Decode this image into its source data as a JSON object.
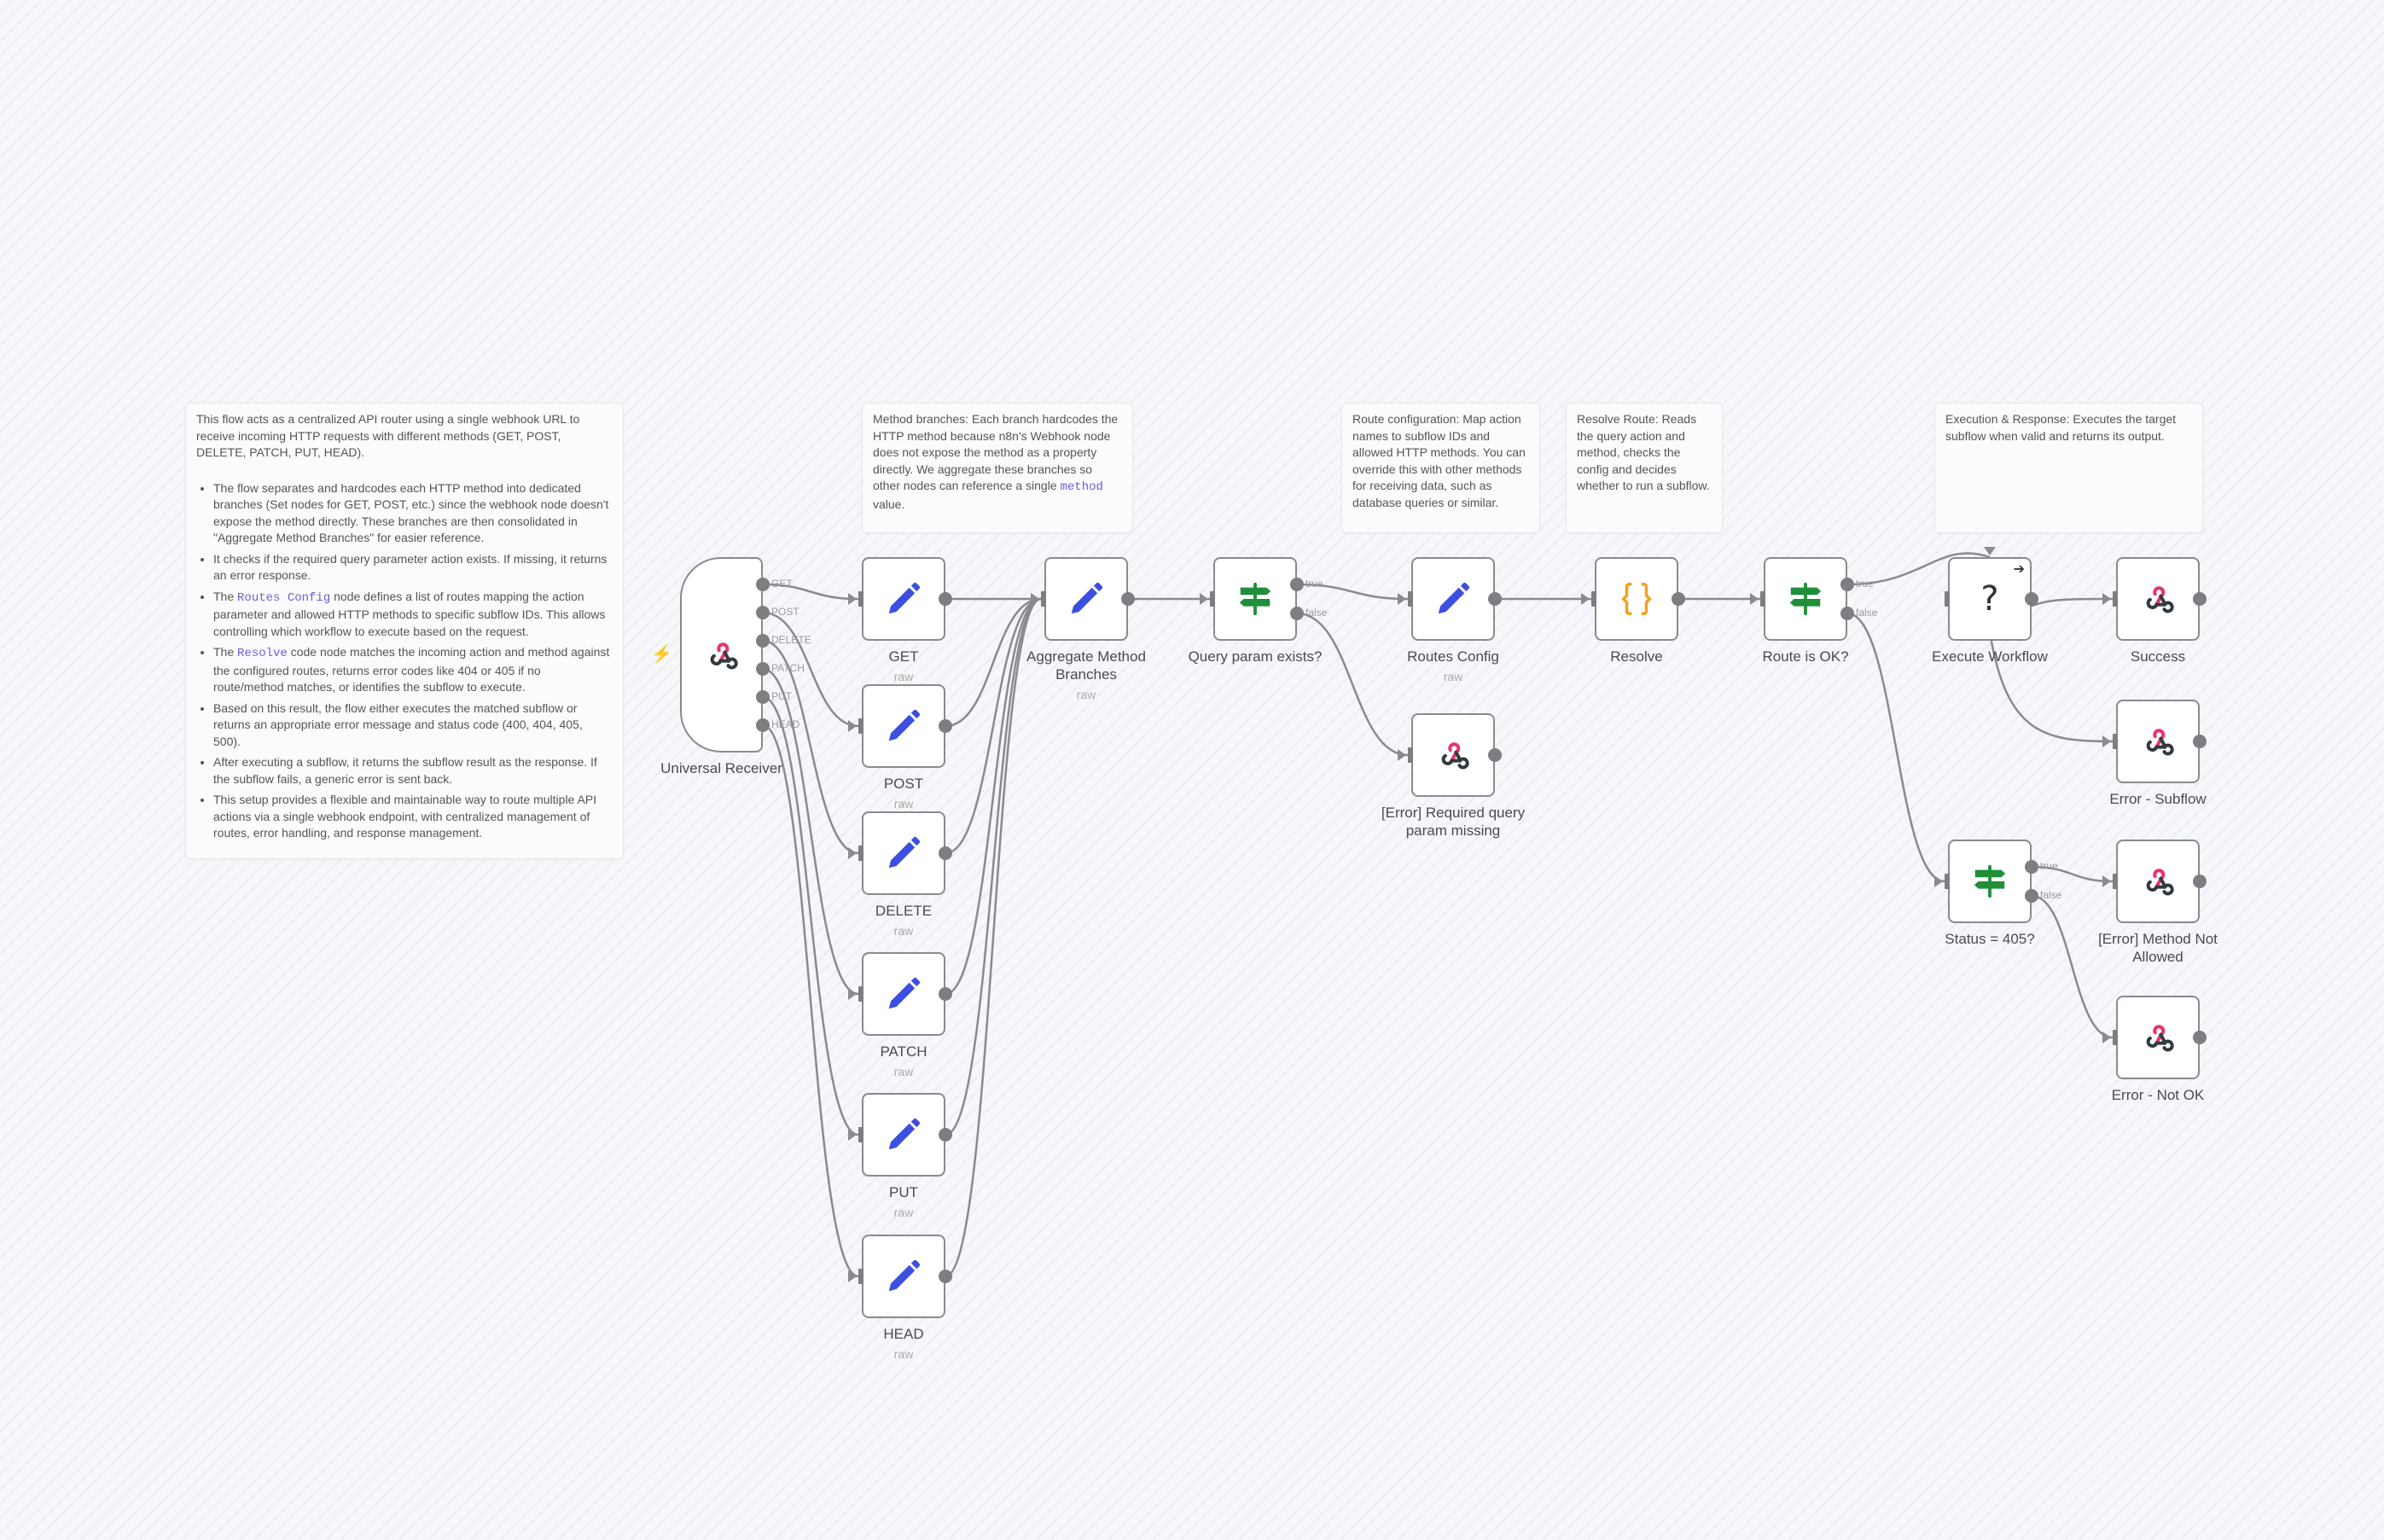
{
  "notes": {
    "overview": {
      "intro": "This flow acts as a centralized API router using a single webhook URL to receive incoming HTTP requests with different methods (GET, POST, DELETE, PATCH, PUT, HEAD).",
      "bullets": [
        {
          "pre": "The flow separates and hardcodes each HTTP method into dedicated branches (Set nodes for GET, POST, etc.) since the webhook node doesn't expose the method directly. These branches are then consolidated in \"Aggregate Method Branches\" for easier reference."
        },
        {
          "pre": "It checks if the required query parameter action exists. If missing, it returns an error response."
        },
        {
          "pre": "The ",
          "code": "Routes Config",
          "post": " node defines a list of routes mapping the action parameter and allowed HTTP methods to specific subflow IDs. This allows controlling which workflow to execute based on the request."
        },
        {
          "pre": "The ",
          "code": "Resolve",
          "post": " code node matches the incoming action and method against the configured routes, returns error codes like 404 or 405 if no route/method matches, or identifies the subflow to execute."
        },
        {
          "pre": "Based on this result, the flow either executes the matched subflow or returns an appropriate error message and status code (400, 404, 405, 500)."
        },
        {
          "pre": "After executing a subflow, it returns the subflow result as the response. If the subflow fails, a generic error is sent back."
        },
        {
          "pre": "This setup provides a flexible and maintainable way to route multiple API actions via a single webhook endpoint, with centralized management of routes, error handling, and response management."
        }
      ]
    },
    "method_branches": {
      "pre": "Method branches: Each branch hardcodes the HTTP method because n8n's Webhook node does not expose the method as a property directly. We aggregate these branches so other nodes can reference a single ",
      "code": "method",
      "post": " value."
    },
    "route_config": {
      "pre": "Route configuration: Map action names to subflow IDs and allowed HTTP methods. You can override this with other methods for receiving data, such as database queries or similar."
    },
    "resolve_route": {
      "pre": "Resolve Route: Reads the query action and method, checks the config and decides whether to run a subflow."
    },
    "execution": {
      "pre": "Execution & Response: Executes the target subflow when valid and returns its output."
    }
  },
  "nodes": [
    {
      "id": "receiver",
      "name": "Universal Receiver",
      "icon": "webhook",
      "outputs": [
        "GET",
        "POST",
        "DELETE",
        "PATCH",
        "PUT",
        "HEAD"
      ]
    },
    {
      "id": "get",
      "name": "GET",
      "subtitle": "raw",
      "icon": "pencil"
    },
    {
      "id": "post",
      "name": "POST",
      "subtitle": "raw",
      "icon": "pencil"
    },
    {
      "id": "delete",
      "name": "DELETE",
      "subtitle": "raw",
      "icon": "pencil"
    },
    {
      "id": "patch",
      "name": "PATCH",
      "subtitle": "raw",
      "icon": "pencil"
    },
    {
      "id": "put",
      "name": "PUT",
      "subtitle": "raw",
      "icon": "pencil"
    },
    {
      "id": "head",
      "name": "HEAD",
      "subtitle": "raw",
      "icon": "pencil"
    },
    {
      "id": "aggregate",
      "name": "Aggregate Method Branches",
      "subtitle": "raw",
      "icon": "pencil"
    },
    {
      "id": "query",
      "name": "Query param exists?",
      "icon": "signpost",
      "outputs": [
        "true",
        "false"
      ]
    },
    {
      "id": "routes",
      "name": "Routes Config",
      "subtitle": "raw",
      "icon": "pencil"
    },
    {
      "id": "errquery",
      "name": "[Error] Required query param missing",
      "icon": "webhook"
    },
    {
      "id": "resolve",
      "name": "Resolve",
      "icon": "braces"
    },
    {
      "id": "routeok",
      "name": "Route is OK?",
      "icon": "signpost",
      "outputs": [
        "true",
        "false"
      ]
    },
    {
      "id": "execute",
      "name": "Execute Workflow",
      "icon": "question"
    },
    {
      "id": "success",
      "name": "Success",
      "icon": "webhook"
    },
    {
      "id": "errsub",
      "name": "Error - Subflow",
      "icon": "webhook"
    },
    {
      "id": "status405",
      "name": "Status = 405?",
      "icon": "signpost",
      "outputs": [
        "true",
        "false"
      ]
    },
    {
      "id": "methodna",
      "name": "[Error] Method Not Allowed",
      "icon": "webhook"
    },
    {
      "id": "notok",
      "name": "Error - Not OK",
      "icon": "webhook"
    }
  ],
  "connections": [
    {
      "from": "receiver",
      "out": 0,
      "to": "get"
    },
    {
      "from": "receiver",
      "out": 1,
      "to": "post"
    },
    {
      "from": "receiver",
      "out": 2,
      "to": "delete"
    },
    {
      "from": "receiver",
      "out": 3,
      "to": "patch"
    },
    {
      "from": "receiver",
      "out": 4,
      "to": "put"
    },
    {
      "from": "receiver",
      "out": 5,
      "to": "head"
    },
    {
      "from": "get",
      "to": "aggregate"
    },
    {
      "from": "post",
      "to": "aggregate"
    },
    {
      "from": "delete",
      "to": "aggregate"
    },
    {
      "from": "patch",
      "to": "aggregate"
    },
    {
      "from": "put",
      "to": "aggregate"
    },
    {
      "from": "head",
      "to": "aggregate"
    },
    {
      "from": "aggregate",
      "to": "query"
    },
    {
      "from": "query",
      "out": 0,
      "to": "routes"
    },
    {
      "from": "query",
      "out": 1,
      "to": "errquery"
    },
    {
      "from": "routes",
      "to": "resolve"
    },
    {
      "from": "resolve",
      "to": "routeok"
    },
    {
      "from": "routeok",
      "out": 0,
      "to": "execute"
    },
    {
      "from": "routeok",
      "out": 1,
      "to": "status405"
    },
    {
      "from": "execute",
      "to": "success"
    },
    {
      "from": "execute",
      "to": "errsub"
    },
    {
      "from": "status405",
      "out": 0,
      "to": "methodna"
    },
    {
      "from": "status405",
      "out": 1,
      "to": "notok"
    }
  ],
  "colors": {
    "pencil": "#3d4fe0",
    "signpost": "#1f8f3a",
    "braces": "#f5a01a",
    "webhook_pink": "#e8336b",
    "webhook_dark": "#333a3f",
    "edge": "#8a8a8f",
    "code": "#6b5fd6"
  }
}
